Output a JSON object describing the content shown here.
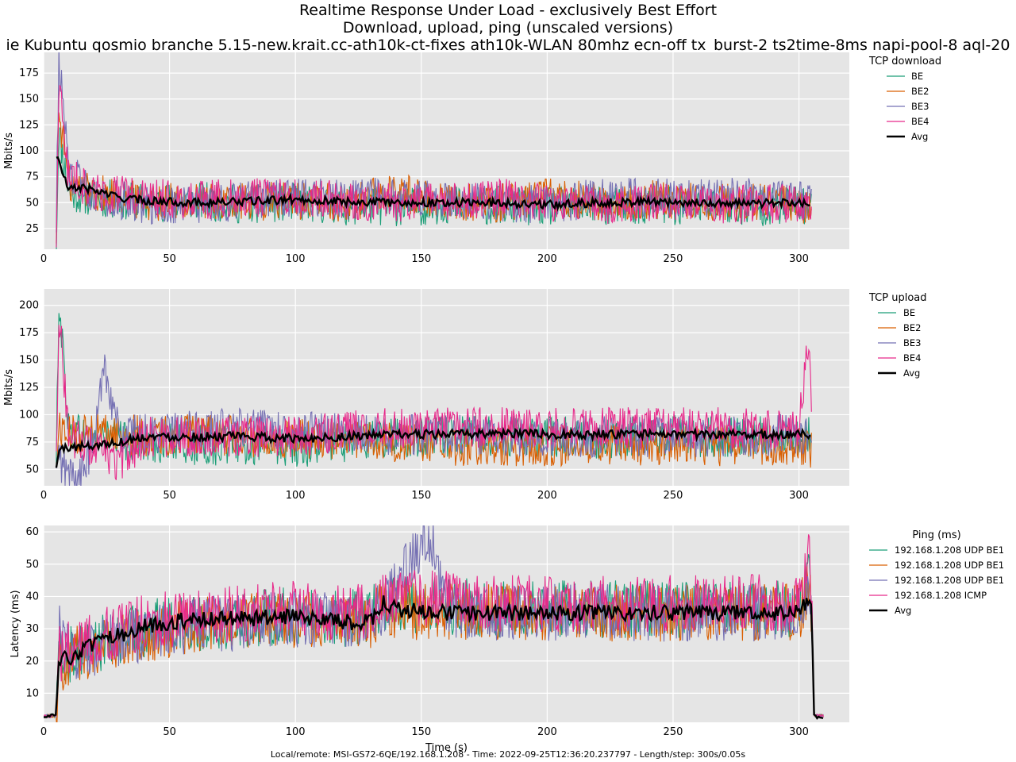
{
  "title": {
    "line1": "Realtime Response Under Load - exclusively Best Effort",
    "line2": "Download, upload, ping (unscaled versions)",
    "line3": "ie Kubuntu qosmio branche 5.15-new.krait.cc-ath10k-ct-fixes ath10k-WLAN 80mhz ecn-off tx_burst-2 ts2time-8ms napi-pool-8 aql-20"
  },
  "footer": "Local/remote: MSI-GS72-6QE/192.168.1.208 - Time: 2022-09-25T12:36:20.237797 - Length/step: 300s/0.05s",
  "colors": {
    "plot_bg": "#e5e5e5",
    "grid": "#ffffff",
    "BE": "#1b9e77",
    "BE2": "#d95f02",
    "BE3": "#7570b3",
    "BE4": "#e7298a",
    "Avg": "#000000"
  },
  "chart_data": [
    {
      "type": "line",
      "legend_title": "TCP download",
      "legend_position": "right",
      "xlabel": "",
      "ylabel": "Mbits/s",
      "xlim": [
        0,
        320
      ],
      "ylim": [
        5,
        195
      ],
      "xticks": [
        0,
        50,
        100,
        150,
        200,
        250,
        300
      ],
      "yticks": [
        25,
        50,
        75,
        100,
        125,
        150,
        175
      ],
      "grid": true,
      "series": [
        {
          "name": "BE",
          "color_key": "BE",
          "x": [
            5,
            6,
            10,
            20,
            40,
            60,
            80,
            100,
            120,
            140,
            160,
            180,
            200,
            220,
            240,
            260,
            280,
            300,
            305
          ],
          "y": [
            10,
            120,
            60,
            55,
            50,
            52,
            48,
            50,
            47,
            46,
            48,
            47,
            46,
            47,
            46,
            47,
            46,
            47,
            45
          ]
        },
        {
          "name": "BE2",
          "color_key": "BE2",
          "x": [
            5,
            6,
            10,
            20,
            40,
            60,
            80,
            100,
            120,
            140,
            160,
            180,
            200,
            220,
            240,
            260,
            280,
            300,
            305
          ],
          "y": [
            20,
            140,
            70,
            60,
            52,
            50,
            50,
            52,
            50,
            60,
            52,
            50,
            55,
            52,
            53,
            52,
            50,
            48,
            50
          ]
        },
        {
          "name": "BE3",
          "color_key": "BE3",
          "x": [
            5,
            6,
            10,
            20,
            40,
            60,
            80,
            100,
            120,
            140,
            160,
            180,
            200,
            220,
            240,
            260,
            280,
            300,
            305
          ],
          "y": [
            30,
            190,
            80,
            58,
            48,
            48,
            52,
            55,
            55,
            55,
            52,
            50,
            48,
            55,
            55,
            55,
            55,
            52,
            50
          ]
        },
        {
          "name": "BE4",
          "color_key": "BE4",
          "x": [
            5,
            6,
            10,
            20,
            40,
            60,
            80,
            100,
            120,
            140,
            160,
            180,
            200,
            220,
            240,
            260,
            280,
            300,
            305
          ],
          "y": [
            15,
            165,
            75,
            60,
            55,
            52,
            55,
            55,
            52,
            50,
            52,
            55,
            50,
            48,
            50,
            50,
            48,
            50,
            52
          ]
        },
        {
          "name": "Avg",
          "color_key": "Avg",
          "x": [
            5,
            6,
            8,
            10,
            15,
            20,
            30,
            40,
            60,
            80,
            100,
            120,
            140,
            160,
            180,
            200,
            220,
            240,
            260,
            280,
            300,
            305
          ],
          "y": [
            95,
            90,
            75,
            62,
            65,
            62,
            55,
            52,
            50,
            51,
            53,
            51,
            50,
            50,
            50,
            48,
            50,
            51,
            50,
            49,
            50,
            50
          ]
        }
      ]
    },
    {
      "type": "line",
      "legend_title": "TCP upload",
      "legend_position": "right",
      "xlabel": "",
      "ylabel": "Mbits/s",
      "xlim": [
        0,
        320
      ],
      "ylim": [
        35,
        215
      ],
      "xticks": [
        0,
        50,
        100,
        150,
        200,
        250,
        300
      ],
      "yticks": [
        50,
        75,
        100,
        125,
        150,
        175,
        200
      ],
      "grid": true,
      "series": [
        {
          "name": "BE",
          "color_key": "BE",
          "x": [
            5,
            6,
            10,
            20,
            40,
            60,
            80,
            100,
            120,
            140,
            160,
            180,
            200,
            220,
            240,
            260,
            280,
            300,
            305
          ],
          "y": [
            50,
            210,
            85,
            80,
            75,
            72,
            72,
            70,
            75,
            80,
            80,
            80,
            80,
            78,
            80,
            80,
            80,
            80,
            80
          ]
        },
        {
          "name": "BE2",
          "color_key": "BE2",
          "x": [
            5,
            6,
            10,
            20,
            40,
            60,
            80,
            100,
            120,
            140,
            160,
            180,
            200,
            220,
            240,
            260,
            280,
            300,
            305
          ],
          "y": [
            50,
            90,
            80,
            85,
            80,
            82,
            80,
            78,
            78,
            75,
            72,
            72,
            72,
            72,
            72,
            72,
            72,
            72,
            70
          ]
        },
        {
          "name": "BE3",
          "color_key": "BE3",
          "x": [
            5,
            6,
            10,
            15,
            20,
            24,
            30,
            40,
            60,
            80,
            100,
            120,
            140,
            160,
            180,
            200,
            220,
            240,
            260,
            280,
            300,
            305
          ],
          "y": [
            45,
            60,
            45,
            45,
            75,
            150,
            80,
            82,
            85,
            88,
            85,
            82,
            82,
            82,
            80,
            80,
            80,
            80,
            80,
            80,
            82,
            80
          ]
        },
        {
          "name": "BE4",
          "color_key": "BE4",
          "x": [
            5,
            6,
            10,
            20,
            30,
            40,
            60,
            80,
            100,
            120,
            140,
            160,
            180,
            200,
            220,
            240,
            260,
            280,
            300,
            304,
            305
          ],
          "y": [
            60,
            195,
            80,
            70,
            55,
            80,
            80,
            80,
            80,
            85,
            88,
            88,
            88,
            88,
            88,
            88,
            88,
            88,
            88,
            170,
            85
          ]
        },
        {
          "name": "Avg",
          "color_key": "Avg",
          "x": [
            5,
            6,
            10,
            20,
            30,
            40,
            60,
            80,
            100,
            120,
            140,
            160,
            180,
            200,
            220,
            240,
            260,
            280,
            300,
            305
          ],
          "y": [
            50,
            68,
            70,
            72,
            75,
            80,
            80,
            80,
            78,
            80,
            82,
            82,
            83,
            82,
            82,
            82,
            82,
            82,
            82,
            82
          ]
        }
      ]
    },
    {
      "type": "line",
      "legend_title": "Ping (ms)",
      "legend_position": "right",
      "xlabel": "Time (s)",
      "ylabel": "Latency (ms)",
      "xlim": [
        0,
        320
      ],
      "ylim": [
        1,
        62
      ],
      "xticks": [
        0,
        50,
        100,
        150,
        200,
        250,
        300
      ],
      "yticks": [
        10,
        20,
        30,
        40,
        50,
        60
      ],
      "grid": true,
      "series": [
        {
          "name": "192.168.1.208 UDP BE1",
          "color_key": "BE",
          "x": [
            0,
            4,
            5,
            6,
            10,
            20,
            40,
            60,
            80,
            100,
            120,
            130,
            135,
            160,
            180,
            200,
            220,
            240,
            260,
            280,
            300,
            304,
            305,
            306,
            310
          ],
          "y": [
            3,
            3,
            3,
            20,
            22,
            25,
            30,
            32,
            33,
            34,
            33,
            34,
            38,
            37,
            36,
            36,
            36,
            36,
            36,
            36,
            36,
            45,
            36,
            3,
            3
          ]
        },
        {
          "name": "192.168.1.208 UDP BE1",
          "color_key": "BE2",
          "x": [
            0,
            4,
            5,
            6,
            10,
            20,
            40,
            60,
            80,
            100,
            120,
            130,
            135,
            160,
            180,
            200,
            220,
            240,
            260,
            280,
            300,
            304,
            305,
            306,
            310
          ],
          "y": [
            3,
            3,
            3,
            18,
            21,
            24,
            28,
            31,
            32,
            33,
            32,
            33,
            36,
            35,
            35,
            35,
            35,
            35,
            35,
            35,
            35,
            42,
            35,
            3,
            3
          ]
        },
        {
          "name": "192.168.1.208 UDP BE1",
          "color_key": "BE3",
          "x": [
            0,
            4,
            5,
            6,
            10,
            20,
            40,
            60,
            80,
            100,
            120,
            130,
            135,
            153,
            160,
            180,
            200,
            220,
            240,
            260,
            280,
            300,
            304,
            305,
            306,
            310
          ],
          "y": [
            3,
            3,
            3,
            30,
            22,
            24,
            29,
            31,
            32,
            33,
            32,
            33,
            37,
            60,
            36,
            35,
            35,
            35,
            35,
            35,
            35,
            35,
            44,
            35,
            3,
            3
          ]
        },
        {
          "name": "192.168.1.208 ICMP",
          "color_key": "BE4",
          "x": [
            0,
            4,
            5,
            6,
            10,
            20,
            40,
            60,
            80,
            100,
            120,
            130,
            135,
            160,
            180,
            200,
            220,
            240,
            260,
            280,
            300,
            304,
            305,
            306,
            310
          ],
          "y": [
            3,
            3,
            3,
            22,
            24,
            27,
            32,
            34,
            35,
            36,
            35,
            36,
            40,
            39,
            38,
            38,
            38,
            38,
            38,
            38,
            38,
            55,
            38,
            3,
            3
          ]
        },
        {
          "name": "Avg",
          "color_key": "Avg",
          "x": [
            0,
            4,
            5,
            6,
            10,
            15,
            20,
            30,
            40,
            50,
            60,
            80,
            100,
            120,
            130,
            135,
            140,
            160,
            180,
            200,
            220,
            240,
            260,
            280,
            300,
            304,
            305,
            306,
            310
          ],
          "y": [
            3,
            3,
            3,
            20,
            21,
            23,
            25,
            28,
            31,
            32,
            33,
            33,
            34,
            32,
            32,
            38,
            36,
            35,
            35,
            35,
            35,
            35,
            35,
            35,
            35,
            40,
            35,
            3,
            2
          ]
        }
      ]
    }
  ]
}
